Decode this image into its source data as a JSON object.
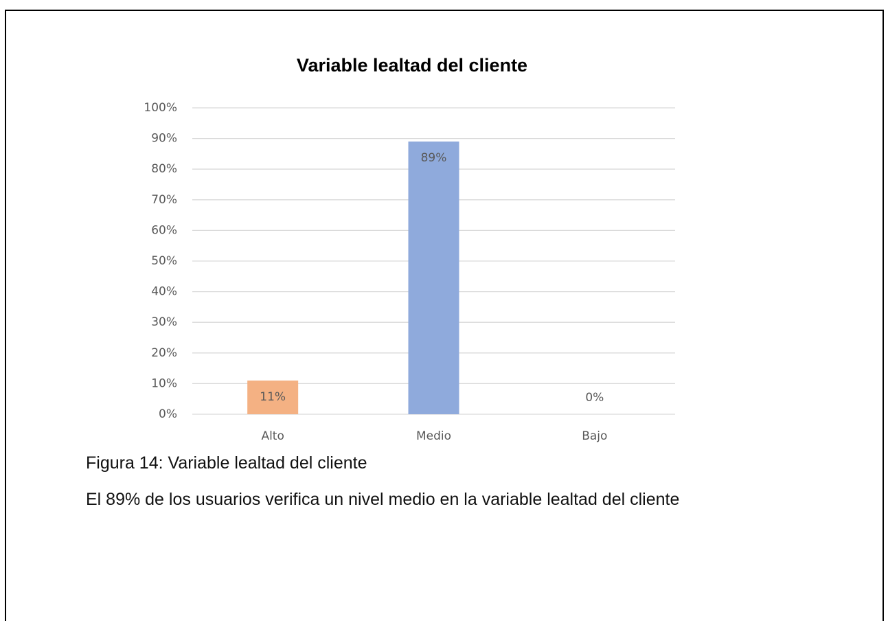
{
  "chart_data": {
    "type": "bar",
    "title": "Variable lealtad del cliente",
    "categories": [
      "Alto",
      "Medio",
      "Bajo"
    ],
    "values": [
      11,
      89,
      0
    ],
    "value_labels": [
      "11%",
      "89%",
      "0%"
    ],
    "colors": [
      "#f4b183",
      "#8faadc",
      "#a9d18e"
    ],
    "ylim": [
      0,
      100
    ],
    "yticks": [
      {
        "value": 0,
        "label": "0%"
      },
      {
        "value": 10,
        "label": "10%"
      },
      {
        "value": 20,
        "label": "20%"
      },
      {
        "value": 30,
        "label": "30%"
      },
      {
        "value": 40,
        "label": "40%"
      },
      {
        "value": 50,
        "label": "50%"
      },
      {
        "value": 60,
        "label": "60%"
      },
      {
        "value": 70,
        "label": "70%"
      },
      {
        "value": 80,
        "label": "80%"
      },
      {
        "value": 90,
        "label": "90%"
      },
      {
        "value": 100,
        "label": "100%"
      }
    ],
    "grid": true
  },
  "caption": "Figura 14: Variable lealtad del cliente",
  "description": "El 89% de los usuarios verifica un nivel medio en la variable lealtad del cliente"
}
